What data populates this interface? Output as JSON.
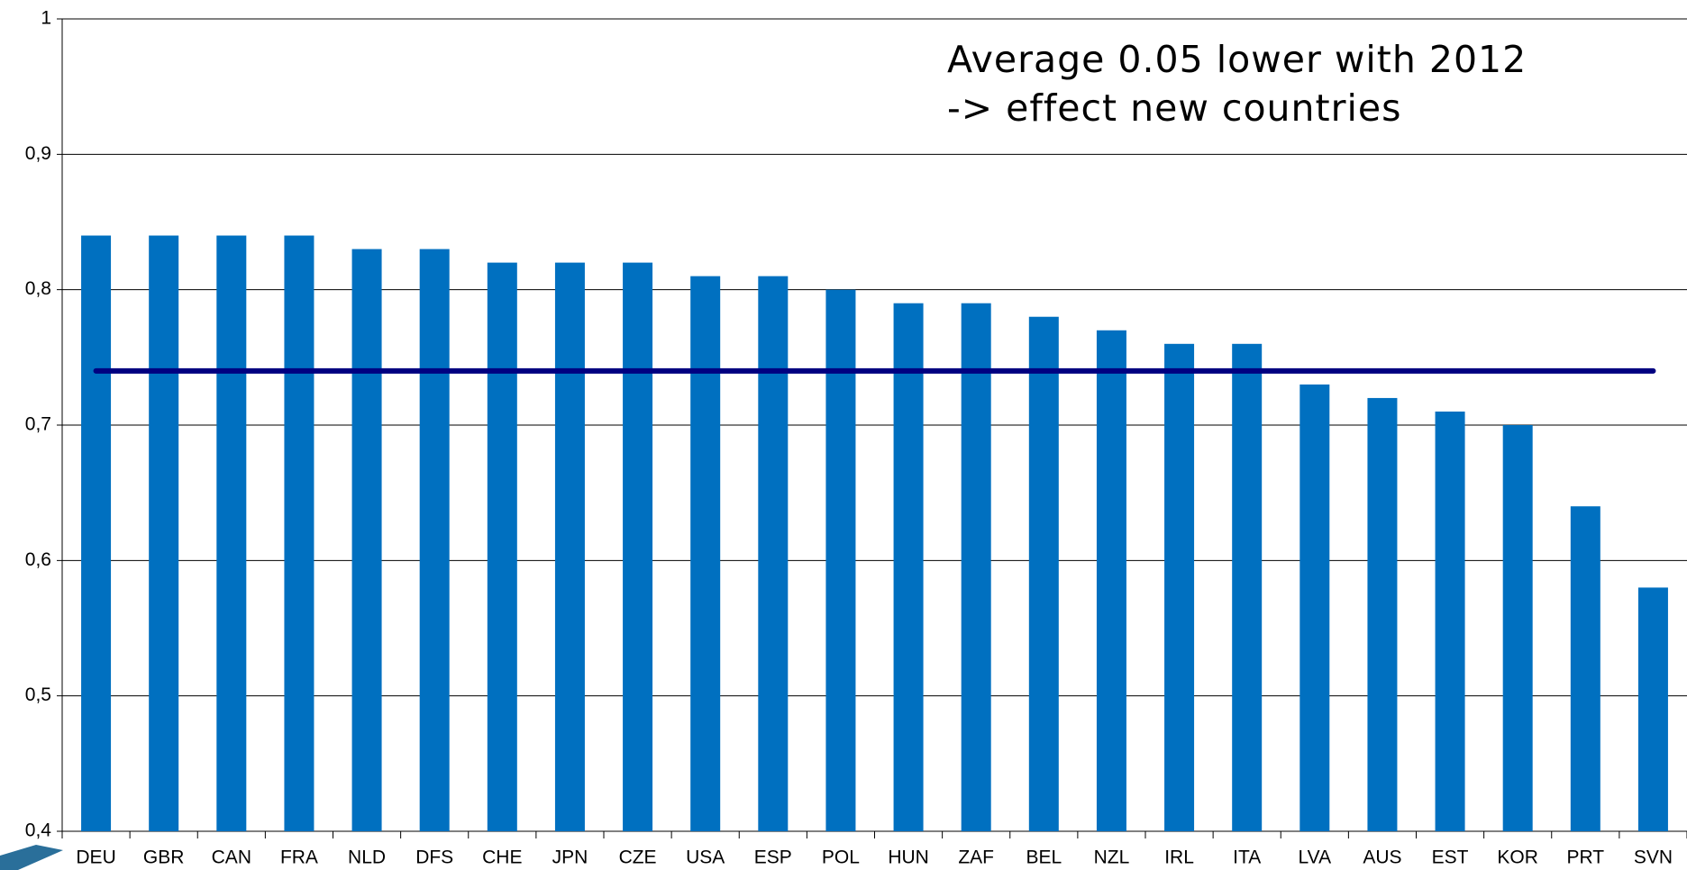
{
  "chart_data": {
    "type": "bar",
    "annotations": [
      "Average 0.05 lower with 2012",
      "-> effect new countries"
    ],
    "categories": [
      "DEU",
      "GBR",
      "CAN",
      "FRA",
      "NLD",
      "DFS",
      "CHE",
      "JPN",
      "CZE",
      "USA",
      "ESP",
      "POL",
      "HUN",
      "ZAF",
      "BEL",
      "NZL",
      "IRL",
      "ITA",
      "LVA",
      "AUS",
      "EST",
      "KOR",
      "PRT",
      "SVN"
    ],
    "values": [
      0.84,
      0.84,
      0.84,
      0.84,
      0.83,
      0.83,
      0.82,
      0.82,
      0.82,
      0.81,
      0.81,
      0.8,
      0.79,
      0.79,
      0.78,
      0.77,
      0.76,
      0.76,
      0.73,
      0.72,
      0.71,
      0.7,
      0.64,
      0.58
    ],
    "color": "#0070c0",
    "reference_line": {
      "value": 0.74,
      "color": "#000080"
    },
    "ylim": [
      0.4,
      1
    ],
    "yticks": [
      {
        "value": 0.4,
        "label": "0,4"
      },
      {
        "value": 0.5,
        "label": "0,5"
      },
      {
        "value": 0.6,
        "label": "0,6"
      },
      {
        "value": 0.7,
        "label": "0,7"
      },
      {
        "value": 0.8,
        "label": "0,8"
      },
      {
        "value": 0.9,
        "label": "0,9"
      },
      1
    ],
    "grid": true
  }
}
